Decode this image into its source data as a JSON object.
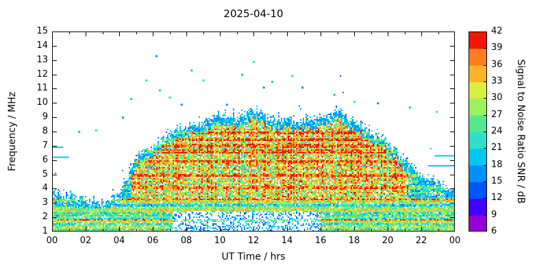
{
  "chart_data": {
    "type": "heatmap",
    "title": "2025-04-10",
    "xlabel": "UT Time / hrs",
    "ylabel": "Frequency / MHz",
    "x_ticks": [
      "00",
      "02",
      "04",
      "06",
      "08",
      "10",
      "12",
      "14",
      "16",
      "18",
      "20",
      "22",
      "00"
    ],
    "x_range_hours": [
      0,
      24
    ],
    "y_ticks": [
      "1",
      "2",
      "3",
      "4",
      "5",
      "6",
      "7",
      "8",
      "9",
      "10",
      "11",
      "12",
      "13",
      "14",
      "15"
    ],
    "y_range_mhz": [
      1,
      15
    ],
    "grid": false,
    "colorbar": {
      "label": "Signal to Noise Ratio SNR / dB",
      "ticks": [
        "6",
        "9",
        "12",
        "15",
        "18",
        "21",
        "24",
        "27",
        "30",
        "33",
        "36",
        "39",
        "42"
      ],
      "min": 6,
      "max": 42,
      "band_colors": [
        "#9400d3",
        "#4400ff",
        "#0055ff",
        "#0090ff",
        "#00c8f0",
        "#2ee0c8",
        "#55e88e",
        "#9ef060",
        "#d8ee40",
        "#ffb428",
        "#ff7d1e",
        "#f01708"
      ]
    },
    "envelope_max_freq_by_hour": [
      3.8,
      3.4,
      3.1,
      3.0,
      3.5,
      6.2,
      6.9,
      7.7,
      8.4,
      8.6,
      9.2,
      8.9,
      9.6,
      8.8,
      8.8,
      8.7,
      8.9,
      9.4,
      8.6,
      7.9,
      7.2,
      5.9,
      4.9,
      4.3,
      3.9
    ],
    "day_core": {
      "start_hour": 4.7,
      "end_hour": 21.2,
      "min_freq": 3.3
    },
    "night_core": {
      "max_freq": 3.3
    },
    "absorption_gap": {
      "start_hour": 7.2,
      "end_hour": 16.0,
      "max_freq": 2.4
    },
    "persistent_bands_mhz": [
      1.8,
      2.5,
      3.2,
      4.1,
      4.9,
      5.9,
      6.6,
      7.0,
      7.4,
      7.9
    ],
    "speckles": [
      [
        1.6,
        8.0
      ],
      [
        2.6,
        8.1
      ],
      [
        4.2,
        9.0
      ],
      [
        4.7,
        10.3
      ],
      [
        5.6,
        11.6
      ],
      [
        6.2,
        13.3
      ],
      [
        6.4,
        10.9
      ],
      [
        7.0,
        10.4
      ],
      [
        7.7,
        9.9
      ],
      [
        8.3,
        12.3
      ],
      [
        9.0,
        11.6
      ],
      [
        10.4,
        9.9
      ],
      [
        11.3,
        12.0
      ],
      [
        12.0,
        12.9
      ],
      [
        12.6,
        11.1
      ],
      [
        13.1,
        11.5
      ],
      [
        14.3,
        11.9
      ],
      [
        14.9,
        11.1
      ],
      [
        16.8,
        10.6
      ],
      [
        18.0,
        10.1
      ],
      [
        19.4,
        10.0
      ],
      [
        21.3,
        9.7
      ],
      [
        22.9,
        9.4
      ]
    ],
    "dashes": [
      [
        0.05,
        1.0,
        6.2
      ],
      [
        0.05,
        0.65,
        6.9
      ],
      [
        22.4,
        24,
        5.6
      ],
      [
        22.8,
        24,
        6.3
      ]
    ]
  }
}
